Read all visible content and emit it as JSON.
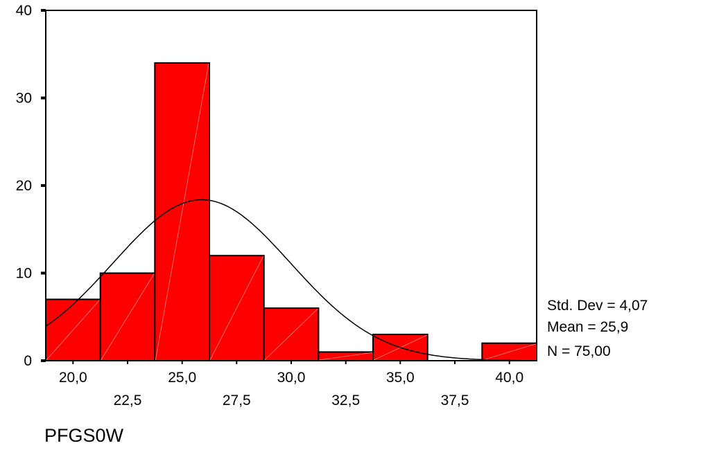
{
  "chart_data": {
    "type": "bar",
    "subtype": "histogram",
    "bin_width": 2.5,
    "bin_starts": [
      18.75,
      21.25,
      23.75,
      26.25,
      28.75,
      31.25,
      33.75,
      36.25,
      38.75
    ],
    "values": [
      7,
      10,
      34,
      12,
      6,
      1,
      3,
      0,
      2
    ],
    "xlim": [
      18.75,
      41.25
    ],
    "ylim": [
      0,
      40
    ],
    "y_ticks": [
      "0",
      "10",
      "20",
      "30",
      "40"
    ],
    "x_ticks": [
      {
        "value": 20.0,
        "label": "20,0"
      },
      {
        "value": 22.5,
        "label": "22,5"
      },
      {
        "value": 25.0,
        "label": "25,0"
      },
      {
        "value": 27.5,
        "label": "27,5"
      },
      {
        "value": 30.0,
        "label": "30,0"
      },
      {
        "value": 32.5,
        "label": "32,5"
      },
      {
        "value": 35.0,
        "label": "35,0"
      },
      {
        "value": 37.5,
        "label": "37,5"
      },
      {
        "value": 40.0,
        "label": "40,0"
      }
    ],
    "xlabel": "PFGS0W",
    "ylabel": "",
    "title": "",
    "normal_curve": {
      "mean": 25.9,
      "sd": 4.07,
      "n": 75
    },
    "stats": {
      "std_dev": "Std. Dev = 4,07",
      "mean": "Mean = 25,9",
      "n": "N = 75,00"
    },
    "bar_color": "#ff0000",
    "grid": false
  }
}
